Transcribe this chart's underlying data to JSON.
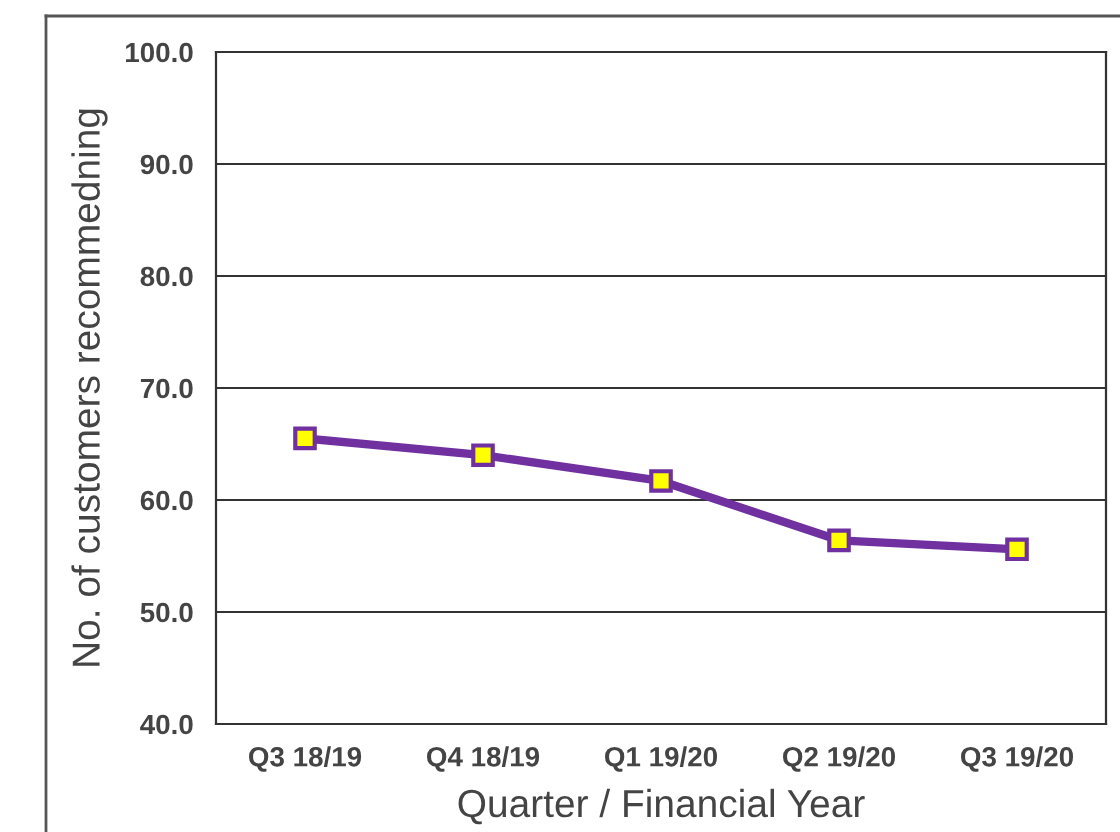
{
  "chart_data": {
    "type": "line",
    "xlabel": "Quarter / Financial Year",
    "ylabel": "No. of customers recommedning",
    "categories": [
      "Q3 18/19",
      "Q4 18/19",
      "Q1 19/20",
      "Q2 19/20",
      "Q3 19/20"
    ],
    "series": [
      {
        "color": "#7030a0",
        "values": [
          65.5,
          64.0,
          61.7,
          56.4,
          55.6
        ]
      }
    ],
    "ylim": [
      40,
      100
    ],
    "yticks": [
      {
        "value": 40,
        "label": "40.0"
      },
      {
        "value": 50,
        "label": "50.0"
      },
      {
        "value": 60,
        "label": "60.0"
      },
      {
        "value": 70,
        "label": "70.0"
      },
      {
        "value": 80,
        "label": "80.0"
      },
      {
        "value": 90,
        "label": "90.0"
      },
      {
        "value": 100,
        "label": "100.0"
      }
    ],
    "grid": "y",
    "marker": "square",
    "line_style": "solid"
  }
}
